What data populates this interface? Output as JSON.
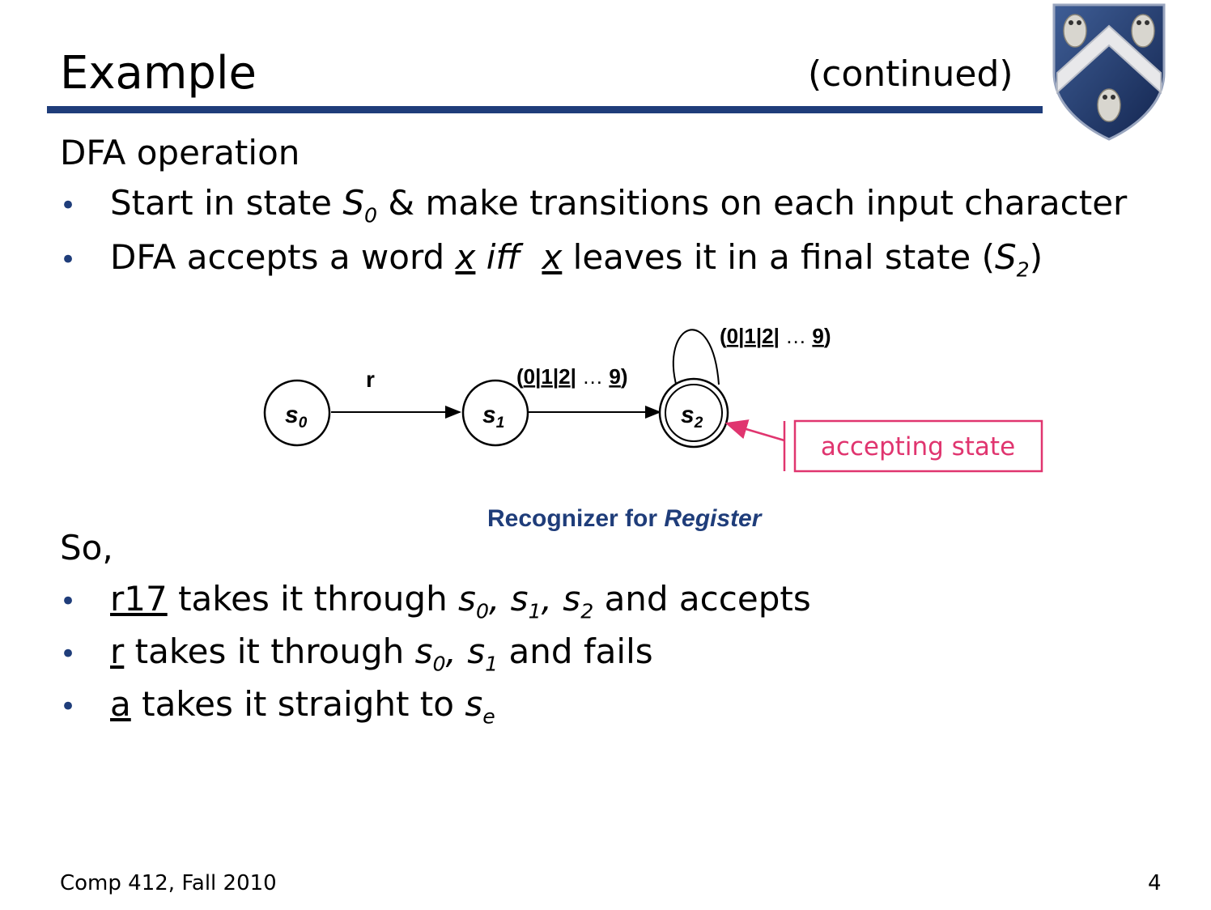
{
  "slide": {
    "title": "Example",
    "subtitle": "(continued)",
    "logo_icon": "owl-shield-icon",
    "accent_color": "#1f3d7a",
    "callout_color": "#e0356f"
  },
  "section1": {
    "heading": "DFA operation",
    "bullet1": {
      "pre": "Start in state ",
      "state": "S",
      "state_sub": "0",
      "post": " & make transitions on each input character"
    },
    "bullet2": {
      "pre": "DFA accepts a word ",
      "x1": "x",
      "iff": "iff",
      "x2": "x",
      "mid": " leaves it in a final state (",
      "state": "S",
      "state_sub": "2",
      "post": ")"
    }
  },
  "diagram": {
    "states": [
      {
        "label": "s",
        "sub": "0"
      },
      {
        "label": "s",
        "sub": "1"
      },
      {
        "label": "s",
        "sub": "2"
      }
    ],
    "edge_s0_s1": "r",
    "edge_s1_s2": {
      "open": "(",
      "d0": "0",
      "bar1": "|",
      "d1": "1",
      "bar2": "|",
      "d2": "2",
      "bar3": "|",
      "dots": " … ",
      "d9": "9",
      "close": ")"
    },
    "edge_loop": {
      "open": "(",
      "d0": "0",
      "bar1": "|",
      "d1": "1",
      "bar2": "|",
      "d2": "2",
      "bar3": "|",
      "dots": " … ",
      "d9": "9",
      "close": ")"
    },
    "callout": "accepting state",
    "caption_pre": "Recognizer for ",
    "caption_word": "Register"
  },
  "section2": {
    "heading": "So,",
    "bullet1": {
      "word": "r17",
      "mid": " takes it through ",
      "s0": "s",
      "s0_sub": "0",
      "sep1": ", ",
      "s1": "s",
      "s1_sub": "1",
      "sep2": ", ",
      "s2": "s",
      "s2_sub": "2",
      "post": " and accepts"
    },
    "bullet2": {
      "word": "r",
      "mid": " takes it through ",
      "s0": "s",
      "s0_sub": "0",
      "sep1": ", ",
      "s1": "s",
      "s1_sub": "1",
      "post": " and fails"
    },
    "bullet3": {
      "word": "a",
      "mid": " takes it straight to ",
      "se": "s",
      "se_sub": "e"
    }
  },
  "footer": {
    "course": "Comp 412, Fall 2010",
    "page": "4"
  }
}
